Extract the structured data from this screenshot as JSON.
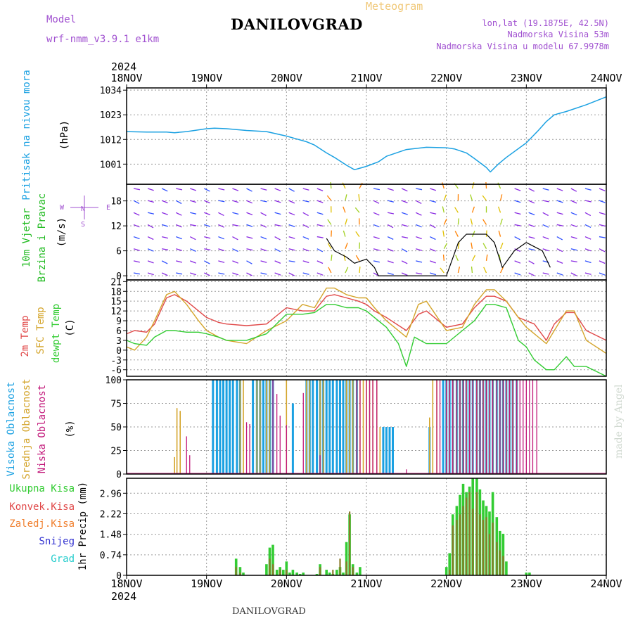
{
  "header": {
    "title": "DANILOVGRAD",
    "meteogram_label": "Meteogram",
    "model_heading": "Model",
    "model_name": "wrf-nmm_v3.9.1 e1km",
    "location_lonlat": "lon,lat (19.1875E, 42.5N)",
    "elevation": "Nadmorska Visina 53m",
    "model_elevation": "Nadmorska Visina u modelu 67.9978m",
    "footer_title": "DANILOVGRAD",
    "credit": "made by Angel"
  },
  "colors": {
    "pressure": "#1ba1e2",
    "wind_label": "#22bb22",
    "t2m": "#e04848",
    "sfc_temp": "#d4a52c",
    "dewpoint": "#33cc33",
    "high_cloud": "#1ba1e2",
    "mid_cloud": "#d4a52c",
    "low_cloud": "#c2187a",
    "total_precip": "#33cc33",
    "conv_precip": "#e04848",
    "frozen_precip": "#f08030",
    "snow": "#3030d0",
    "hail": "#22cccc",
    "purple_text": "#a050d0",
    "wind_max": "#000000"
  },
  "chart_data": [
    {
      "id": "pressure",
      "type": "line",
      "panel_labels": [
        "Pritisak na nivou mora",
        "(hPa)"
      ],
      "x_axis_top": {
        "year": "2024",
        "ticks": [
          "18NOV",
          "19NOV",
          "20NOV",
          "21NOV",
          "22NOV",
          "23NOV",
          "24NOV"
        ]
      },
      "x_range_days": [
        18,
        24
      ],
      "ylim": [
        992,
        1035
      ],
      "y_ticks": [
        1001,
        1012,
        1023,
        1034
      ],
      "grid": true,
      "series": [
        {
          "x": [
            18.0,
            18.25,
            18.5,
            18.6,
            18.75,
            19.0,
            19.1,
            19.25,
            19.5,
            19.75,
            20.0,
            20.1,
            20.25,
            20.35,
            20.5,
            20.6,
            20.75,
            20.85,
            21.0,
            21.15,
            21.25,
            21.5,
            21.75,
            22.0,
            22.1,
            22.25,
            22.35,
            22.5,
            22.55,
            22.65,
            22.75,
            23.0,
            23.15,
            23.25,
            23.35,
            23.5,
            23.75,
            24.0
          ],
          "y": [
            1015.5,
            1015.3,
            1015.3,
            1015.0,
            1015.5,
            1016.8,
            1017.0,
            1016.8,
            1016.0,
            1015.5,
            1013.5,
            1012.5,
            1011.0,
            1009.5,
            1006.0,
            1004.0,
            1000.5,
            998.5,
            1000.0,
            1002.0,
            1004.5,
            1007.5,
            1008.5,
            1008.3,
            1007.8,
            1006.0,
            1003.5,
            999.5,
            997.5,
            1001.0,
            1004.0,
            1010.5,
            1016.0,
            1020.0,
            1023.0,
            1024.5,
            1027.5,
            1031.0
          ]
        }
      ]
    },
    {
      "id": "wind",
      "type": "line",
      "panel_labels": [
        "10m Vjetar",
        "Brzina i Pravac",
        "(m/s)"
      ],
      "compass": {
        "n": "N",
        "s": "S",
        "e": "E",
        "w": "W"
      },
      "ylim": [
        -1,
        22
      ],
      "y_ticks": [
        0,
        6,
        12,
        18
      ],
      "grid": true,
      "series": [
        {
          "name": "wind_max",
          "x": [
            20.5,
            20.6,
            20.75,
            20.85,
            21.0,
            21.1,
            21.15,
            22.0,
            22.15,
            22.25,
            22.5,
            22.6,
            22.7,
            22.85,
            23.0,
            23.2,
            23.3
          ],
          "y": [
            9,
            6,
            4.5,
            3,
            4,
            2,
            0,
            0,
            8,
            10,
            10,
            8,
            2,
            6,
            8,
            6,
            2
          ]
        }
      ]
    },
    {
      "id": "temperature",
      "type": "line",
      "panel_labels": [
        "2m Temp",
        "SFC Temp",
        "dewpt Temp",
        "(C)"
      ],
      "ylim": [
        -8,
        21.5
      ],
      "y_ticks": [
        -6,
        -3,
        0,
        3,
        6,
        9,
        12,
        15,
        18,
        21
      ],
      "grid": true,
      "series": [
        {
          "name": "2m Temp",
          "x": [
            18.0,
            18.1,
            18.25,
            18.35,
            18.5,
            18.6,
            18.75,
            18.9,
            19.0,
            19.15,
            19.25,
            19.5,
            19.75,
            20.0,
            20.2,
            20.35,
            20.5,
            20.6,
            20.75,
            20.9,
            21.0,
            21.1,
            21.25,
            21.5,
            21.65,
            21.75,
            22.0,
            22.2,
            22.35,
            22.5,
            22.6,
            22.75,
            22.9,
            23.0,
            23.1,
            23.25,
            23.35,
            23.5,
            23.6,
            23.75,
            24.0
          ],
          "y": [
            5,
            6,
            5.5,
            8,
            16,
            17,
            15,
            12,
            10,
            8.5,
            8,
            7.5,
            8,
            13,
            12,
            12,
            16.5,
            17,
            16,
            15,
            14,
            12,
            10,
            6,
            11,
            12,
            7,
            8,
            13,
            16.5,
            16.5,
            15,
            10,
            9,
            8,
            3,
            8,
            11.5,
            11.5,
            6,
            3
          ]
        },
        {
          "name": "SFC Temp",
          "x": [
            18.0,
            18.1,
            18.25,
            18.35,
            18.5,
            18.6,
            18.75,
            18.9,
            19.0,
            19.15,
            19.25,
            19.5,
            19.75,
            20.0,
            20.2,
            20.35,
            20.5,
            20.6,
            20.75,
            20.9,
            21.0,
            21.1,
            21.25,
            21.5,
            21.65,
            21.75,
            22.0,
            22.2,
            22.35,
            22.5,
            22.6,
            22.75,
            22.9,
            23.0,
            23.1,
            23.25,
            23.35,
            23.5,
            23.6,
            23.75,
            24.0
          ],
          "y": [
            1,
            0,
            4,
            9,
            17,
            18,
            14,
            9,
            6,
            4,
            3,
            2,
            6,
            9,
            14,
            13,
            19,
            19,
            17,
            16,
            16,
            13,
            9,
            4,
            14,
            15,
            6,
            7,
            14,
            18.5,
            18.5,
            15,
            10,
            7,
            5,
            2,
            6,
            12,
            12,
            3,
            -1
          ]
        },
        {
          "name": "dewpt Temp",
          "x": [
            18.0,
            18.1,
            18.25,
            18.35,
            18.5,
            18.6,
            18.75,
            18.9,
            19.0,
            19.15,
            19.25,
            19.5,
            19.75,
            20.0,
            20.2,
            20.35,
            20.5,
            20.6,
            20.75,
            20.9,
            21.0,
            21.1,
            21.25,
            21.4,
            21.5,
            21.6,
            21.75,
            22.0,
            22.2,
            22.35,
            22.5,
            22.6,
            22.75,
            22.9,
            23.0,
            23.1,
            23.25,
            23.35,
            23.5,
            23.6,
            23.75,
            24.0
          ],
          "y": [
            3,
            2,
            1.5,
            4,
            6,
            6,
            5.5,
            5.5,
            5,
            4,
            3,
            3,
            5,
            11,
            11,
            11.5,
            14,
            14,
            13,
            13,
            12,
            10,
            7,
            2,
            -5,
            4,
            2,
            2,
            6,
            9,
            14,
            14,
            13,
            3,
            1,
            -3,
            -6,
            -6,
            -2,
            -5,
            -5,
            -8
          ]
        }
      ]
    },
    {
      "id": "clouds",
      "type": "bar",
      "panel_labels": [
        "Visoka Oblacnost",
        "Srednja Oblacnost",
        "Niska Oblacnost",
        "(%)"
      ],
      "ylim": [
        0,
        100
      ],
      "y_ticks": [
        0,
        25,
        50,
        75,
        100
      ],
      "grid": true,
      "series": [
        {
          "name": "Visoka Oblacnost",
          "x": [
            19.08,
            19.13,
            19.17,
            19.21,
            19.25,
            19.29,
            19.33,
            19.38,
            19.42,
            19.58,
            19.63,
            19.67,
            19.71,
            19.75,
            19.79,
            19.83,
            20.08,
            20.25,
            20.29,
            20.33,
            20.38,
            20.42,
            20.46,
            20.5,
            20.54,
            20.58,
            20.63,
            20.67,
            20.71,
            20.75,
            20.79,
            20.83,
            20.88,
            21.21,
            21.25,
            21.29,
            21.33,
            21.79,
            21.96,
            22.0,
            22.04,
            22.08,
            22.13,
            22.17,
            22.21,
            22.25,
            22.29,
            22.33,
            22.38,
            22.42,
            22.46,
            22.5,
            22.54,
            22.58,
            22.63,
            22.67,
            22.71,
            22.75,
            22.79,
            22.83,
            22.88
          ],
          "y": [
            100,
            100,
            100,
            100,
            100,
            100,
            100,
            100,
            100,
            100,
            100,
            100,
            100,
            100,
            100,
            100,
            75,
            100,
            100,
            100,
            100,
            100,
            100,
            100,
            100,
            100,
            100,
            100,
            100,
            100,
            100,
            100,
            100,
            50,
            50,
            50,
            50,
            50,
            100,
            100,
            100,
            100,
            100,
            100,
            100,
            100,
            100,
            100,
            100,
            100,
            100,
            100,
            100,
            100,
            100,
            100,
            100,
            100,
            100,
            100,
            100
          ]
        },
        {
          "name": "Srednja Oblacnost",
          "x": [
            18.6,
            18.63,
            18.67,
            19.42,
            19.46,
            19.63,
            19.67,
            19.75,
            19.79,
            20.0,
            20.25,
            20.29,
            20.42,
            20.46,
            20.75,
            20.79,
            20.83,
            20.88,
            20.92,
            20.96,
            21.0,
            21.04,
            21.08,
            21.13,
            21.17,
            21.79,
            21.83,
            21.88,
            22.0,
            22.04,
            22.08,
            22.13,
            22.17,
            22.21,
            22.25,
            22.29,
            22.33,
            22.38,
            22.42,
            22.46,
            22.5,
            22.54,
            22.58,
            22.63,
            22.67,
            22.71,
            22.75,
            22.79,
            22.83,
            22.88
          ],
          "y": [
            18,
            70,
            67,
            100,
            100,
            100,
            100,
            100,
            100,
            100,
            100,
            100,
            100,
            100,
            100,
            100,
            100,
            100,
            100,
            100,
            100,
            100,
            100,
            100,
            50,
            60,
            100,
            100,
            100,
            100,
            100,
            100,
            100,
            100,
            100,
            100,
            100,
            100,
            100,
            100,
            100,
            100,
            100,
            100,
            100,
            100,
            100,
            100,
            100,
            100
          ]
        },
        {
          "name": "Niska Oblacnost",
          "x": [
            18.75,
            18.79,
            19.5,
            19.54,
            19.83,
            19.88,
            19.92,
            20.0,
            20.21,
            20.42,
            20.88,
            20.92,
            21.0,
            21.04,
            21.08,
            21.13,
            21.5,
            21.88,
            21.92,
            22.0,
            22.04,
            22.08,
            22.13,
            22.17,
            22.21,
            22.25,
            22.29,
            22.33,
            22.38,
            22.42,
            22.46,
            22.5,
            22.54,
            22.58,
            22.63,
            22.67,
            22.71,
            22.75,
            22.79,
            22.83,
            22.88,
            22.92,
            22.96,
            23.0,
            23.04,
            23.08,
            23.13
          ],
          "y": [
            40,
            20,
            55,
            53,
            100,
            85,
            62,
            52,
            86,
            20,
            100,
            100,
            100,
            100,
            100,
            100,
            5,
            100,
            100,
            100,
            100,
            100,
            100,
            100,
            100,
            100,
            100,
            100,
            100,
            100,
            100,
            100,
            100,
            100,
            100,
            100,
            100,
            100,
            100,
            100,
            100,
            100,
            100,
            100,
            100,
            100,
            100
          ]
        }
      ]
    },
    {
      "id": "precip",
      "type": "bar",
      "panel_labels": [
        "Ukupna Kisa",
        "Konvek.Kisa",
        "Zaledj.Kisa",
        "Snijeg",
        "Grad",
        "1hr Precip (mm)"
      ],
      "x_axis_bottom": {
        "year": "2024",
        "ticks": [
          "18NOV",
          "19NOV",
          "20NOV",
          "21NOV",
          "22NOV",
          "23NOV",
          "24NOV"
        ]
      },
      "ylim": [
        0,
        3.5
      ],
      "y_ticks": [
        0,
        0.74,
        1.48,
        2.22,
        2.96
      ],
      "grid": true,
      "series": [
        {
          "name": "Ukupna Kisa",
          "x": [
            19.37,
            19.42,
            19.46,
            19.75,
            19.79,
            19.83,
            19.88,
            19.92,
            19.96,
            20.0,
            20.04,
            20.08,
            20.13,
            20.17,
            20.21,
            20.38,
            20.42,
            20.5,
            20.54,
            20.58,
            20.63,
            20.67,
            20.71,
            20.75,
            20.79,
            20.83,
            20.88,
            20.92,
            22.0,
            22.04,
            22.08,
            22.13,
            22.17,
            22.21,
            22.25,
            22.29,
            22.33,
            22.38,
            22.42,
            22.46,
            22.5,
            22.54,
            22.58,
            22.63,
            22.67,
            22.71,
            22.75,
            23.0,
            23.04
          ],
          "y": [
            0.6,
            0.3,
            0.1,
            0.4,
            1.0,
            1.1,
            0.2,
            0.3,
            0.2,
            0.5,
            0.1,
            0.2,
            0.1,
            0.05,
            0.1,
            0.05,
            0.4,
            0.2,
            0.1,
            0.05,
            0.2,
            0.3,
            0.1,
            1.2,
            2.2,
            0.4,
            0.1,
            0.3,
            0.3,
            0.8,
            2.2,
            2.5,
            2.9,
            3.3,
            3.0,
            3.2,
            3.5,
            3.5,
            3.1,
            2.7,
            2.5,
            2.3,
            3.0,
            2.1,
            1.6,
            1.5,
            0.5,
            0.1,
            0.1
          ]
        },
        {
          "name": "Konvek.Kisa",
          "x": [
            19.37,
            19.42,
            19.79,
            19.83,
            19.92,
            20.0,
            20.42,
            20.58,
            20.67,
            20.75,
            20.79,
            20.83,
            22.04,
            22.08,
            22.13,
            22.17,
            22.21,
            22.25,
            22.29,
            22.33,
            22.38,
            22.42,
            22.46,
            22.5,
            22.54,
            22.58,
            22.63,
            22.67,
            22.71
          ],
          "y": [
            0.3,
            0.1,
            0.6,
            0.4,
            0.2,
            0.2,
            0.3,
            0.2,
            0.6,
            0.5,
            2.3,
            0.3,
            0.2,
            1.8,
            2.0,
            2.2,
            2.5,
            2.8,
            3.0,
            2.4,
            3.0,
            2.2,
            2.0,
            2.1,
            1.5,
            1.9,
            1.2,
            0.9,
            0.7
          ]
        },
        {
          "name": "Zaledj.Kisa",
          "x": [],
          "y": []
        },
        {
          "name": "Snijeg",
          "x": [],
          "y": []
        },
        {
          "name": "Grad",
          "x": [],
          "y": []
        }
      ]
    }
  ]
}
